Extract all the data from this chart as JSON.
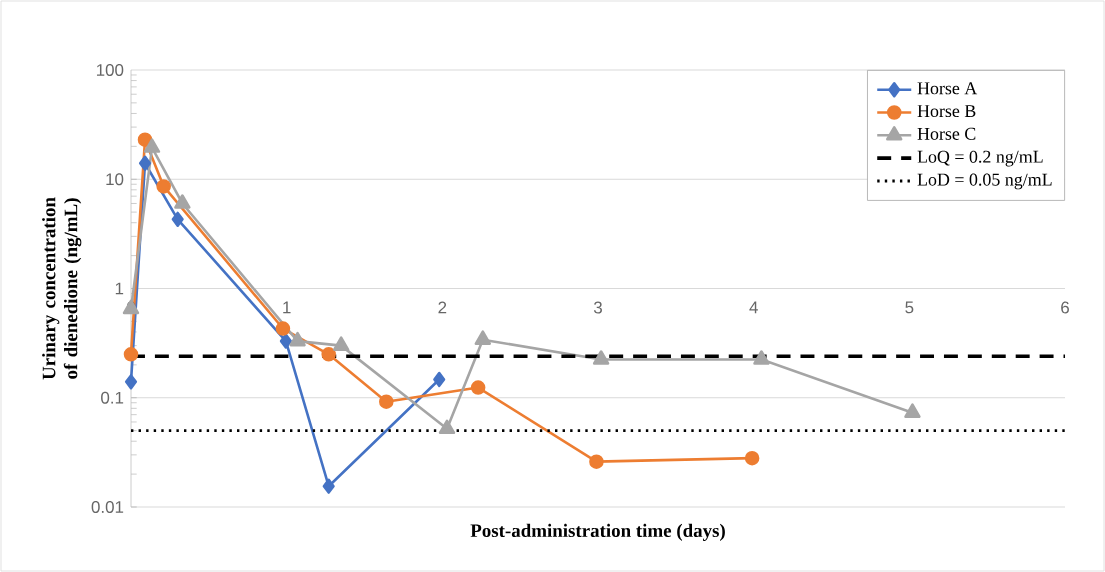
{
  "chart_data": {
    "type": "line",
    "xlabel": "Post-administration time (days)",
    "ylabel": "Urinary concentration of dienedione (ng/mL)",
    "xlim": [
      0,
      6
    ],
    "xticks": [
      0,
      1,
      2,
      3,
      4,
      5,
      6
    ],
    "ylim": [
      0.01,
      100
    ],
    "yticks": [
      0.01,
      0.1,
      1,
      10,
      100
    ],
    "log": "y",
    "grid": "y",
    "legend": "top right",
    "series": [
      {
        "name": "Horse A",
        "color": "#4472c4",
        "marker": "diamond",
        "line_style": "solid",
        "x": [
          0,
          0.09,
          0.3,
          0.995,
          1.27,
          1.98
        ],
        "values": [
          0.14,
          14,
          4.3,
          0.33,
          0.0155,
          0.147
        ]
      },
      {
        "name": "Horse B",
        "color": "#ed7d31",
        "marker": "circle",
        "line_style": "solid",
        "x": [
          0,
          0.09,
          0.21,
          0.976,
          1.27,
          1.64,
          2.23,
          2.99,
          3.99
        ],
        "values": [
          0.25,
          23,
          8.6,
          0.43,
          0.25,
          0.092,
          0.124,
          0.026,
          0.028
        ]
      },
      {
        "name": "Horse C",
        "color": "#a5a5a5",
        "marker": "triangle",
        "line_style": "solid",
        "x": [
          0,
          0.135,
          0.33,
          1.07,
          1.35,
          2.03,
          2.26,
          3.02,
          4.05,
          5.02
        ],
        "values": [
          0.65,
          19.5,
          6,
          0.33,
          0.3,
          0.052,
          0.34,
          0.224,
          0.224,
          0.073
        ]
      },
      {
        "name": "LoQ = 0.2 ng/mL",
        "color": "#000000",
        "marker": "none",
        "line_style": "dashed",
        "x": [
          0,
          6
        ],
        "values": [
          0.24,
          0.24
        ]
      },
      {
        "name": "LoD = 0.05 ng/mL",
        "color": "#000000",
        "marker": "none",
        "line_style": "dotted",
        "x": [
          0,
          6
        ],
        "values": [
          0.05,
          0.05
        ]
      }
    ]
  }
}
